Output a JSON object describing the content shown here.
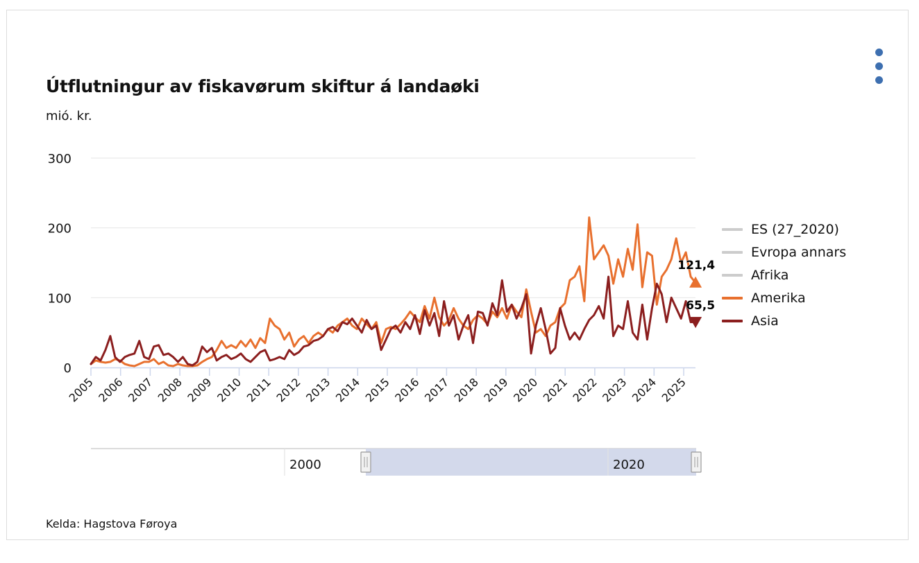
{
  "chart_data": {
    "type": "line",
    "title": "Útflutningur av fiskavørum skiftur á landaøki",
    "subtitle": "mió. kr.",
    "ylabel": "mió. kr.",
    "xlabel": "",
    "ylim": [
      0,
      300
    ],
    "xlim": [
      2005,
      2025.4
    ],
    "y_ticks": [
      "0",
      "100",
      "200",
      "300"
    ],
    "y_tick_values": [
      0,
      100,
      200,
      300
    ],
    "x_ticks": [
      "2005",
      "2006",
      "2007",
      "2008",
      "2009",
      "2010",
      "2011",
      "2012",
      "2013",
      "2014",
      "2015",
      "2016",
      "2017",
      "2018",
      "2019",
      "2020",
      "2021",
      "2022",
      "2023",
      "2024",
      "2025"
    ],
    "grid": true,
    "legend_position": "right",
    "points_per_year": 6,
    "x_start": 2005,
    "series": [
      {
        "name": "ES (27_2020)",
        "color": "#cccccc",
        "visible": false,
        "values": []
      },
      {
        "name": "Evropa annars",
        "color": "#cccccc",
        "visible": false,
        "values": []
      },
      {
        "name": "Afrika",
        "color": "#cccccc",
        "visible": false,
        "values": []
      },
      {
        "name": "Amerika",
        "color": "#e8702e",
        "visible": true,
        "end_label": "121,4",
        "end_marker": "triangle-up",
        "values": [
          5,
          10,
          8,
          7,
          8,
          12,
          10,
          5,
          3,
          2,
          5,
          8,
          8,
          12,
          5,
          8,
          3,
          2,
          5,
          3,
          2,
          2,
          3,
          8,
          12,
          15,
          25,
          38,
          28,
          32,
          28,
          38,
          30,
          40,
          28,
          42,
          35,
          70,
          60,
          55,
          40,
          50,
          30,
          40,
          45,
          35,
          45,
          50,
          45,
          55,
          50,
          60,
          65,
          70,
          60,
          55,
          70,
          62,
          55,
          65,
          35,
          55,
          58,
          55,
          62,
          70,
          80,
          72,
          65,
          88,
          70,
          100,
          72,
          60,
          68,
          85,
          70,
          60,
          55,
          68,
          75,
          70,
          62,
          80,
          72,
          85,
          70,
          90,
          80,
          72,
          112,
          80,
          50,
          55,
          45,
          60,
          65,
          85,
          92,
          125,
          130,
          145,
          95,
          215,
          155,
          165,
          175,
          160,
          120,
          155,
          130,
          170,
          140,
          205,
          115,
          165,
          160,
          90,
          130,
          140,
          155,
          185,
          150,
          165,
          130,
          121.4
        ]
      },
      {
        "name": "Asia",
        "color": "#8b1e1e",
        "visible": true,
        "end_label": "65,5",
        "end_marker": "triangle-down",
        "values": [
          5,
          15,
          10,
          25,
          45,
          15,
          8,
          15,
          18,
          20,
          38,
          15,
          12,
          30,
          32,
          18,
          20,
          15,
          8,
          15,
          5,
          3,
          8,
          30,
          22,
          28,
          10,
          15,
          18,
          12,
          15,
          20,
          12,
          8,
          15,
          22,
          25,
          10,
          12,
          15,
          12,
          25,
          18,
          22,
          30,
          32,
          38,
          40,
          45,
          55,
          58,
          52,
          65,
          62,
          70,
          60,
          50,
          68,
          55,
          60,
          25,
          40,
          55,
          60,
          50,
          65,
          55,
          75,
          48,
          82,
          60,
          78,
          45,
          95,
          60,
          75,
          40,
          60,
          75,
          35,
          80,
          78,
          60,
          92,
          75,
          125,
          80,
          90,
          70,
          85,
          105,
          20,
          60,
          85,
          55,
          20,
          28,
          85,
          60,
          40,
          50,
          40,
          55,
          68,
          75,
          88,
          70,
          130,
          45,
          60,
          55,
          95,
          50,
          40,
          90,
          40,
          85,
          120,
          105,
          65,
          100,
          85,
          70,
          95,
          65,
          65.5
        ]
      }
    ],
    "navigator": {
      "labels": [
        "2000",
        "2020"
      ],
      "label_years": [
        2000,
        2020
      ],
      "range_start_year": 2005,
      "range_end_year": 2025.4
    }
  },
  "source": "Kelda: Hagstova Føroya",
  "menu_icon": "kebab-menu-icon",
  "colors": {
    "menu": "#3d6fb0",
    "grid": "#e6e6e6",
    "axis": "#ccd6eb",
    "navigator_mask": "#d3d9eb"
  }
}
